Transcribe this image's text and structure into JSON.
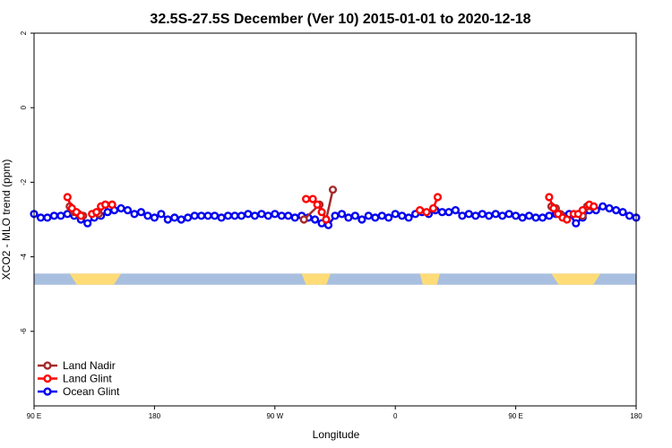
{
  "chart_data": {
    "type": "line",
    "title": "32.5S-27.5S December (Ver 10)   2015-01-01 to 2020-12-18",
    "xlabel": "Longitude",
    "ylabel": "XCO2 - MLO trend (ppm)",
    "xlim": [
      0,
      270
    ],
    "ylim": [
      -8,
      2
    ],
    "x_ticks": [
      {
        "value": 0,
        "label": "90 E"
      },
      {
        "value": 54,
        "label": "180"
      },
      {
        "value": 108,
        "label": "90 W"
      },
      {
        "value": 162,
        "label": "0"
      },
      {
        "value": 216,
        "label": "90 E"
      },
      {
        "value": 270,
        "label": "180"
      }
    ],
    "y_ticks": [
      {
        "value": 2,
        "label": "2"
      },
      {
        "value": 0,
        "label": "0"
      },
      {
        "value": -2,
        "label": "-2"
      },
      {
        "value": -4,
        "label": "-4"
      },
      {
        "value": -6,
        "label": "-6"
      }
    ],
    "land_band": {
      "y_top": -4.45,
      "y_bottom": -4.75,
      "ocean_color": "#a9bfdf",
      "land_color": "#ffdc78",
      "land_segments": [
        [
          16,
          39
        ],
        [
          120,
          133
        ],
        [
          173,
          182
        ],
        [
          232,
          254
        ]
      ]
    },
    "series": [
      {
        "name": "Land Nadir",
        "color": "#a52a2a",
        "segments": [
          {
            "x": [
              16,
              18,
              20,
              22
            ],
            "y": [
              -2.65,
              -2.8,
              -2.85,
              -2.9
            ]
          },
          {
            "x": [
              29,
              32,
              35
            ],
            "y": [
              -2.85,
              -2.6,
              -2.6
            ]
          },
          {
            "x": [
              121,
              128,
              131,
              134
            ],
            "y": [
              -3.0,
              -2.6,
              -3.0,
              -2.2
            ]
          },
          {
            "x": [
              232,
              234,
              236
            ],
            "y": [
              -2.65,
              -2.7,
              -2.85
            ]
          },
          {
            "x": [
              246,
              248,
              250
            ],
            "y": [
              -2.9,
              -2.65,
              -2.65
            ]
          }
        ]
      },
      {
        "name": "Land Glint",
        "color": "#ff0000",
        "segments": [
          {
            "x": [
              15,
              17,
              19,
              21
            ],
            "y": [
              -2.4,
              -2.7,
              -2.8,
              -2.9
            ]
          },
          {
            "x": [
              26,
              28,
              30,
              32,
              35
            ],
            "y": [
              -2.85,
              -2.8,
              -2.65,
              -2.6,
              -2.6
            ]
          },
          {
            "x": [
              122,
              125,
              127,
              129,
              131
            ],
            "y": [
              -2.45,
              -2.45,
              -2.6,
              -2.8,
              -3.0
            ]
          },
          {
            "x": [
              173,
              176,
              179,
              181
            ],
            "y": [
              -2.75,
              -2.8,
              -2.7,
              -2.4
            ]
          },
          {
            "x": [
              231,
              233,
              235,
              237,
              239
            ],
            "y": [
              -2.4,
              -2.7,
              -2.85,
              -2.95,
              -3.0
            ]
          },
          {
            "x": [
              242,
              244,
              246,
              249,
              251
            ],
            "y": [
              -2.85,
              -2.85,
              -2.75,
              -2.6,
              -2.65
            ]
          }
        ]
      },
      {
        "name": "Ocean Glint",
        "color": "#0000ee",
        "x": [
          0,
          3,
          6,
          9,
          12,
          15,
          18,
          21,
          24,
          27,
          30,
          33,
          36,
          39,
          42,
          45,
          48,
          51,
          54,
          57,
          60,
          63,
          66,
          69,
          72,
          75,
          78,
          81,
          84,
          87,
          90,
          93,
          96,
          99,
          102,
          105,
          108,
          111,
          114,
          117,
          120,
          123,
          126,
          129,
          132,
          135,
          138,
          141,
          144,
          147,
          150,
          153,
          156,
          159,
          162,
          165,
          168,
          171,
          174,
          177,
          180,
          183,
          186,
          189,
          192,
          195,
          198,
          201,
          204,
          207,
          210,
          213,
          216,
          219,
          222,
          225,
          228,
          231,
          234,
          237,
          240,
          243,
          246,
          249,
          252,
          255,
          258,
          261,
          264,
          267,
          270
        ],
        "y": [
          -2.85,
          -2.95,
          -2.95,
          -2.9,
          -2.9,
          -2.85,
          -2.9,
          -3.0,
          -3.1,
          -2.95,
          -2.9,
          -2.8,
          -2.75,
          -2.7,
          -2.75,
          -2.85,
          -2.8,
          -2.9,
          -2.95,
          -2.85,
          -3.0,
          -2.95,
          -3.0,
          -2.95,
          -2.9,
          -2.9,
          -2.9,
          -2.9,
          -2.95,
          -2.9,
          -2.9,
          -2.9,
          -2.85,
          -2.9,
          -2.85,
          -2.9,
          -2.85,
          -2.9,
          -2.9,
          -2.95,
          -2.9,
          -2.95,
          -3.0,
          -3.1,
          -3.15,
          -2.9,
          -2.85,
          -2.95,
          -2.9,
          -3.0,
          -2.9,
          -2.95,
          -2.9,
          -2.95,
          -2.85,
          -2.9,
          -2.95,
          -2.85,
          -2.8,
          -2.85,
          -2.75,
          -2.8,
          -2.8,
          -2.75,
          -2.9,
          -2.85,
          -2.9,
          -2.85,
          -2.9,
          -2.85,
          -2.9,
          -2.85,
          -2.9,
          -2.95,
          -2.9,
          -2.95,
          -2.95,
          -2.9,
          -2.85,
          -2.9,
          -2.85,
          -3.1,
          -2.95,
          -2.75,
          -2.75,
          -2.65,
          -2.7,
          -2.75,
          -2.8,
          -2.9,
          -2.95
        ]
      }
    ],
    "legend_position": "bottom-left"
  }
}
